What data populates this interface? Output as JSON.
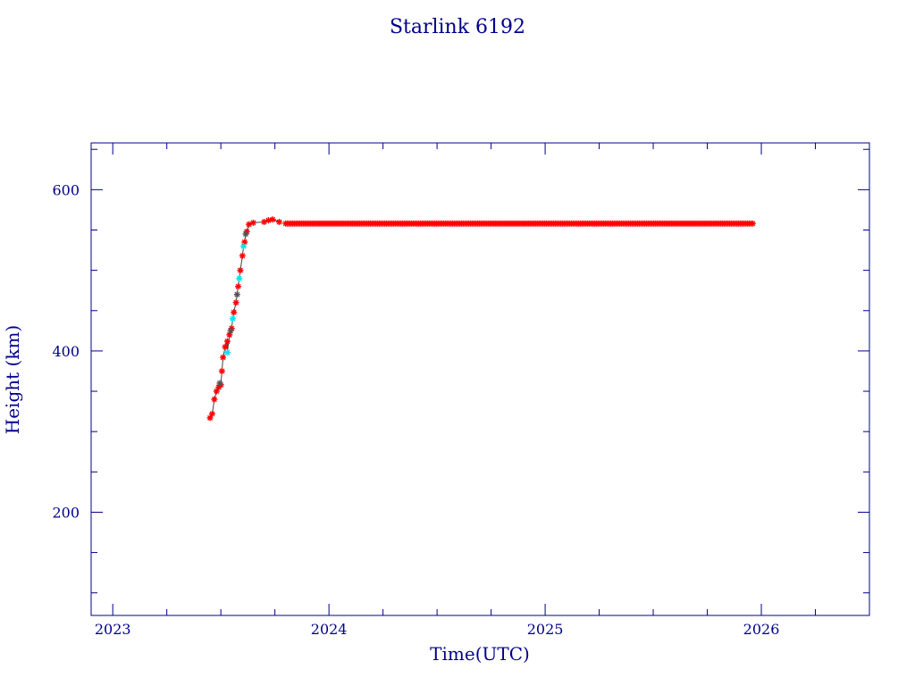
{
  "chart_data": {
    "type": "scatter",
    "title": "Starlink 6192",
    "xlabel": "Time(UTC)",
    "ylabel": "Height (km)",
    "xlim": [
      2022.9,
      2026.5
    ],
    "ylim": [
      72,
      658
    ],
    "x_ticks": [
      2023,
      2024,
      2025,
      2026
    ],
    "y_ticks": [
      200,
      400,
      600
    ],
    "grid": false,
    "legend": "none",
    "colors": {
      "frame": "#00008b",
      "text": "#00008b",
      "points_primary": "#ff0000",
      "points_secondary": "#00e5ee",
      "points_tertiary": "#555555"
    },
    "series": [
      {
        "points": [
          [
            2023.45,
            317
          ],
          [
            2023.46,
            322
          ],
          [
            2023.47,
            340
          ],
          [
            2023.48,
            350
          ],
          [
            2023.49,
            355
          ],
          [
            2023.5,
            358
          ],
          [
            2023.505,
            375
          ],
          [
            2023.51,
            392
          ],
          [
            2023.52,
            405
          ],
          [
            2023.53,
            412
          ],
          [
            2023.54,
            420
          ],
          [
            2023.55,
            428
          ],
          [
            2023.56,
            448
          ],
          [
            2023.57,
            460
          ],
          [
            2023.58,
            480
          ],
          [
            2023.59,
            500
          ],
          [
            2023.6,
            518
          ],
          [
            2023.61,
            535
          ],
          [
            2023.62,
            548
          ],
          [
            2023.63,
            557
          ],
          [
            2023.65,
            559
          ],
          [
            2023.7,
            560
          ],
          [
            2023.72,
            562
          ],
          [
            2023.74,
            563
          ],
          [
            2023.77,
            560
          ]
        ]
      },
      {
        "points": [
          [
            2023.53,
            398
          ],
          [
            2023.555,
            440
          ],
          [
            2023.585,
            490
          ],
          [
            2023.605,
            530
          ]
        ]
      },
      {
        "points": [
          [
            2023.495,
            360
          ],
          [
            2023.545,
            425
          ],
          [
            2023.575,
            470
          ],
          [
            2023.615,
            545
          ]
        ]
      },
      {
        "x_start": 2023.8,
        "x_end": 2025.96,
        "y": 558
      }
    ]
  }
}
